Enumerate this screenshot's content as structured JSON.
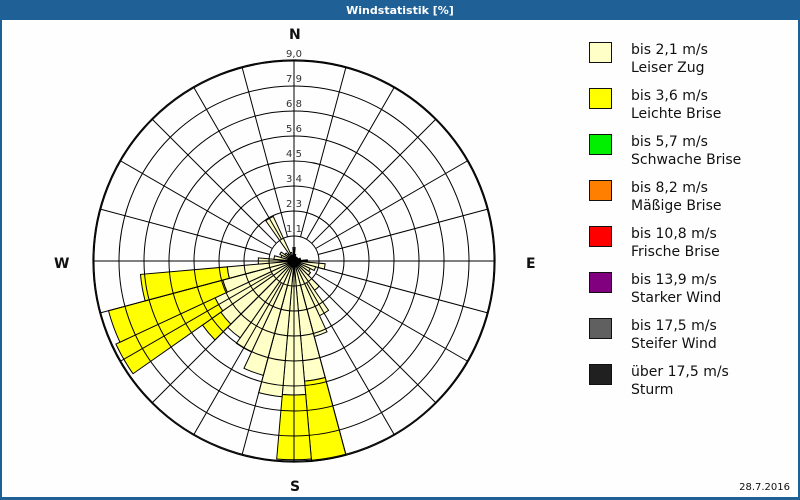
{
  "title": "Windstatistik [%]",
  "date": "28.7.2016",
  "compass": {
    "n": "N",
    "e": "E",
    "s": "S",
    "w": "W"
  },
  "legend": [
    {
      "range": "bis 2,1 m/s",
      "name": "Leiser Zug",
      "color": "#ffffc8"
    },
    {
      "range": "bis 3,6 m/s",
      "name": "Leichte Brise",
      "color": "#ffff00"
    },
    {
      "range": "bis 5,7 m/s",
      "name": "Schwache Brise",
      "color": "#00f000"
    },
    {
      "range": "bis 8,2 m/s",
      "name": "Mäßige Brise",
      "color": "#ff8000"
    },
    {
      "range": "bis 10,8 m/s",
      "name": "Frische Brise",
      "color": "#ff0000"
    },
    {
      "range": "bis 13,9 m/s",
      "name": "Starker Wind",
      "color": "#800080"
    },
    {
      "range": "bis 17,5 m/s",
      "name": "Steifer Wind",
      "color": "#606060"
    },
    {
      "range": "über 17,5 m/s",
      "name": "Sturm",
      "color": "#202020"
    }
  ],
  "chart_data": {
    "type": "wind-rose",
    "title": "Windstatistik [%]",
    "unit": "%",
    "ring_labels": [
      "1,1",
      "2,3",
      "3,4",
      "4,5",
      "5,6",
      "6,8",
      "7,9",
      "9,0"
    ],
    "ring_values": [
      1.1,
      2.3,
      3.4,
      4.5,
      5.6,
      6.8,
      7.9,
      9.0
    ],
    "rmax": 9.0,
    "sector_width_deg": 10,
    "series_names": [
      "bis 2,1 m/s",
      "bis 3,6 m/s"
    ],
    "sectors": [
      {
        "dir": 0,
        "values": [
          0.6,
          0
        ]
      },
      {
        "dir": 10,
        "values": [
          0.3,
          0
        ]
      },
      {
        "dir": 20,
        "values": [
          0.2,
          0
        ]
      },
      {
        "dir": 30,
        "values": [
          0.2,
          0
        ]
      },
      {
        "dir": 40,
        "values": [
          0.2,
          0
        ]
      },
      {
        "dir": 50,
        "values": [
          0.2,
          0
        ]
      },
      {
        "dir": 60,
        "values": [
          0.2,
          0
        ]
      },
      {
        "dir": 70,
        "values": [
          0.3,
          0
        ]
      },
      {
        "dir": 80,
        "values": [
          0.3,
          0
        ]
      },
      {
        "dir": 90,
        "values": [
          0.6,
          0
        ]
      },
      {
        "dir": 100,
        "values": [
          1.4,
          0
        ]
      },
      {
        "dir": 110,
        "values": [
          1.0,
          0
        ]
      },
      {
        "dir": 120,
        "values": [
          0.8,
          0
        ]
      },
      {
        "dir": 130,
        "values": [
          0.9,
          0
        ]
      },
      {
        "dir": 140,
        "values": [
          1.6,
          0
        ]
      },
      {
        "dir": 150,
        "values": [
          2.7,
          0
        ]
      },
      {
        "dir": 160,
        "values": [
          3.5,
          0
        ]
      },
      {
        "dir": 170,
        "values": [
          5.4,
          3.6
        ]
      },
      {
        "dir": 180,
        "values": [
          6.0,
          2.9
        ]
      },
      {
        "dir": 190,
        "values": [
          6.1,
          0
        ]
      },
      {
        "dir": 200,
        "values": [
          5.3,
          0
        ]
      },
      {
        "dir": 210,
        "values": [
          4.5,
          0
        ]
      },
      {
        "dir": 220,
        "values": [
          4.2,
          0
        ]
      },
      {
        "dir": 230,
        "values": [
          4.0,
          1.0
        ]
      },
      {
        "dir": 240,
        "values": [
          3.9,
          4.9
        ]
      },
      {
        "dir": 250,
        "values": [
          3.3,
          5.3
        ]
      },
      {
        "dir": 260,
        "values": [
          3.0,
          3.9
        ]
      },
      {
        "dir": 270,
        "values": [
          1.6,
          0
        ]
      },
      {
        "dir": 280,
        "values": [
          0.9,
          0
        ]
      },
      {
        "dir": 290,
        "values": [
          0.6,
          0
        ]
      },
      {
        "dir": 300,
        "values": [
          0.7,
          0
        ]
      },
      {
        "dir": 310,
        "values": [
          0.5,
          0
        ]
      },
      {
        "dir": 320,
        "values": [
          0.4,
          0
        ]
      },
      {
        "dir": 330,
        "values": [
          2.2,
          0
        ]
      },
      {
        "dir": 340,
        "values": [
          0.4,
          0
        ]
      },
      {
        "dir": 350,
        "values": [
          0.2,
          0
        ]
      }
    ],
    "legend_position": "right",
    "grid": true
  }
}
